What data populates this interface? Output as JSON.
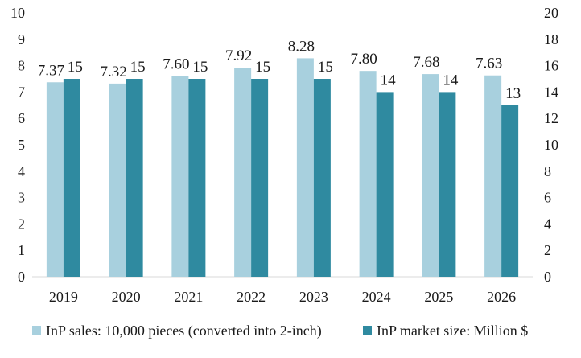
{
  "chart_data": {
    "type": "bar",
    "categories": [
      "2019",
      "2020",
      "2021",
      "2022",
      "2023",
      "2024",
      "2025",
      "2026"
    ],
    "series": [
      {
        "name": "InP sales: 10,000 pieces (converted into 2-inch)",
        "axis": "left",
        "color": "#a8d0de",
        "values": [
          7.37,
          7.32,
          7.6,
          7.92,
          8.28,
          7.8,
          7.68,
          7.63
        ],
        "labels": [
          "7.37",
          "7.32",
          "7.60",
          "7.92",
          "8.28",
          "7.80",
          "7.68",
          "7.63"
        ]
      },
      {
        "name": "InP market size: Million $",
        "axis": "right",
        "color": "#2f8aa0",
        "values": [
          15,
          15,
          15,
          15,
          15,
          14,
          14,
          13
        ],
        "labels": [
          "15",
          "15",
          "15",
          "15",
          "15",
          "14",
          "14",
          "13"
        ]
      }
    ],
    "y_left": {
      "ylim": [
        0,
        10
      ],
      "ticks": [
        "0",
        "1",
        "2",
        "3",
        "4",
        "5",
        "6",
        "7",
        "8",
        "9",
        "10"
      ]
    },
    "y_right": {
      "ylim": [
        0,
        20
      ],
      "ticks": [
        "0",
        "2",
        "4",
        "6",
        "8",
        "10",
        "12",
        "14",
        "16",
        "18",
        "20"
      ]
    },
    "grid": false,
    "legend_position": "bottom",
    "title": "",
    "xlabel": "",
    "ylabel": ""
  }
}
